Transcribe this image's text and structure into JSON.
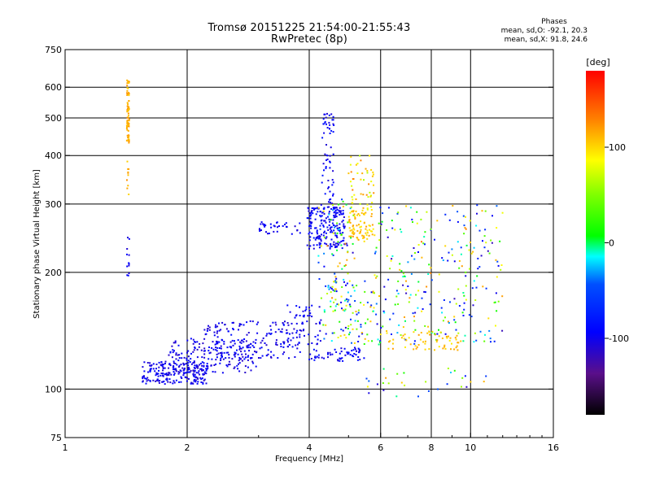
{
  "title_line1": "Tromsø 20151225 21:54:00-21:55:43",
  "title_line2": "RwPretec (8p)",
  "stats": {
    "header": "Phases",
    "line1": "mean, sd,O: -92.1, 20.3",
    "line2": "mean, sd,X:  91.8, 24.6"
  },
  "colorbar": {
    "unit": "[deg]",
    "range": [
      -180,
      180
    ],
    "ticks": [
      {
        "value": 100,
        "label": "100"
      },
      {
        "value": 0,
        "label": "0"
      },
      {
        "value": -100,
        "label": "-100"
      }
    ]
  },
  "chart_data": {
    "type": "scatter",
    "xlabel": "Frequency [MHz]",
    "ylabel": "Stationary phase Virtual Height [km]",
    "xscale": "log",
    "yscale": "log",
    "xlim": [
      1,
      16
    ],
    "ylim": [
      75,
      750
    ],
    "grid": true,
    "x_ticks": [
      {
        "value": 1,
        "label": "1"
      },
      {
        "value": 2,
        "label": "2"
      },
      {
        "value": 4,
        "label": "4"
      },
      {
        "value": 6,
        "label": "6"
      },
      {
        "value": 8,
        "label": "8"
      },
      {
        "value": 10,
        "label": "10"
      },
      {
        "value": 16,
        "label": "16"
      }
    ],
    "x_grid": [
      2,
      4,
      6,
      8,
      10
    ],
    "y_ticks": [
      {
        "value": 75,
        "label": "75"
      },
      {
        "value": 100,
        "label": "100"
      },
      {
        "value": 200,
        "label": "200"
      },
      {
        "value": 300,
        "label": "300"
      },
      {
        "value": 400,
        "label": "400"
      },
      {
        "value": 500,
        "label": "500"
      },
      {
        "value": 600,
        "label": "600"
      },
      {
        "value": 750,
        "label": "750"
      }
    ],
    "y_grid": [
      100,
      200,
      300,
      400,
      500,
      600
    ],
    "clusters": [
      {
        "x": [
          1.55,
          2.25
        ],
        "y": [
          103,
          118
        ],
        "phase": [
          -115,
          -85
        ],
        "n": 220
      },
      {
        "x": [
          1.8,
          3.0
        ],
        "y": [
          110,
          135
        ],
        "phase": [
          -115,
          -85
        ],
        "n": 170
      },
      {
        "x": [
          2.2,
          3.8
        ],
        "y": [
          120,
          150
        ],
        "phase": [
          -115,
          -85
        ],
        "n": 160
      },
      {
        "x": [
          3.5,
          4.3
        ],
        "y": [
          130,
          165
        ],
        "phase": [
          -110,
          -85
        ],
        "n": 60
      },
      {
        "x": [
          4.0,
          5.5
        ],
        "y": [
          118,
          128
        ],
        "phase": [
          -110,
          -80
        ],
        "n": 60
      },
      {
        "x": [
          3.95,
          4.9
        ],
        "y": [
          230,
          295
        ],
        "phase": [
          -110,
          -80
        ],
        "n": 200
      },
      {
        "x": [
          4.3,
          4.6
        ],
        "y": [
          300,
          520
        ],
        "phase": [
          -110,
          -80
        ],
        "n": 60
      },
      {
        "x": [
          4.2,
          5.2
        ],
        "y": [
          160,
          310
        ],
        "phase": [
          -115,
          130
        ],
        "n": 90
      },
      {
        "x": [
          5.0,
          5.8
        ],
        "y": [
          240,
          290
        ],
        "phase": [
          90,
          120
        ],
        "n": 80
      },
      {
        "x": [
          5.0,
          5.8
        ],
        "y": [
          290,
          400
        ],
        "phase": [
          60,
          130
        ],
        "n": 50
      },
      {
        "x": [
          4.3,
          5.8
        ],
        "y": [
          130,
          190
        ],
        "phase": [
          -110,
          120
        ],
        "n": 90
      },
      {
        "x": [
          5.8,
          12.0
        ],
        "y": [
          130,
          300
        ],
        "phase": [
          -120,
          130
        ],
        "n": 260
      },
      {
        "x": [
          6.2,
          9.5
        ],
        "y": [
          126,
          142
        ],
        "phase": [
          90,
          120
        ],
        "n": 60
      },
      {
        "x": [
          3.0,
          3.8
        ],
        "y": [
          250,
          270
        ],
        "phase": [
          -110,
          -90
        ],
        "n": 35
      },
      {
        "x": [
          1.42,
          1.44
        ],
        "y": [
          430,
          630
        ],
        "phase": [
          100,
          125
        ],
        "n": 70
      },
      {
        "x": [
          1.42,
          1.44
        ],
        "y": [
          300,
          390
        ],
        "phase": [
          100,
          125
        ],
        "n": 10
      },
      {
        "x": [
          1.42,
          1.44
        ],
        "y": [
          195,
          250
        ],
        "phase": [
          -110,
          -90
        ],
        "n": 12
      },
      {
        "x": [
          5.5,
          11.0
        ],
        "y": [
          95,
          115
        ],
        "phase": [
          -120,
          120
        ],
        "n": 30
      }
    ]
  }
}
